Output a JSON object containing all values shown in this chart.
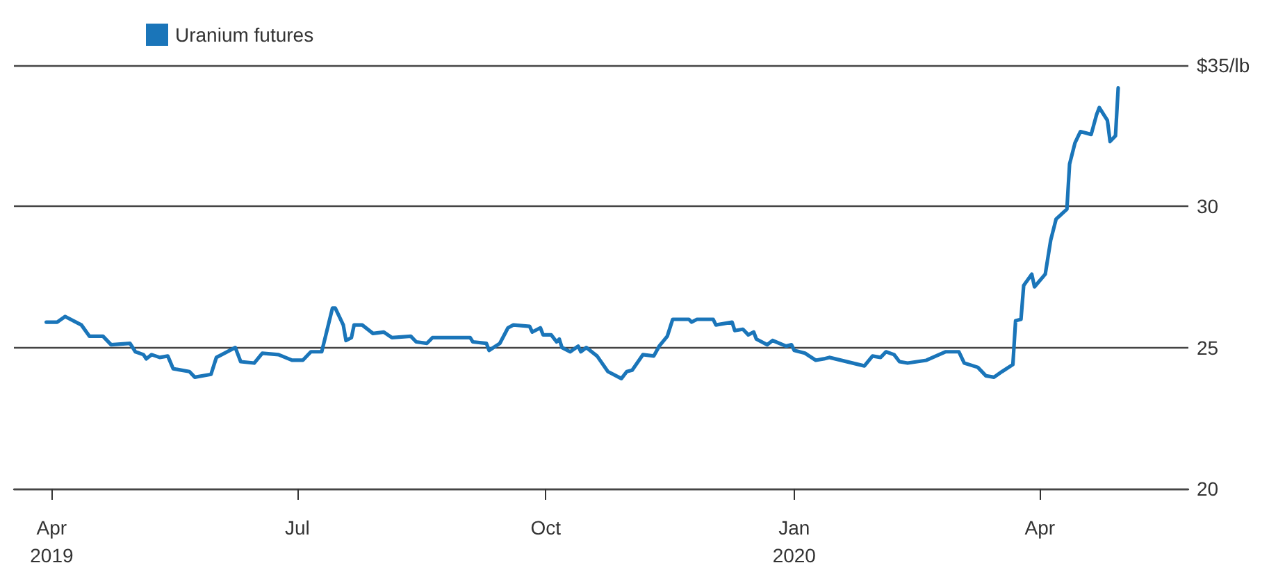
{
  "chart_data": {
    "type": "line",
    "legend": "top left",
    "grid": "y",
    "line_style": "solid",
    "marker": "none",
    "xlim": [
      "2019-03-18",
      "2020-05-26"
    ],
    "xticks": [
      {
        "value": "2019-04-01",
        "label": "Apr\n2019"
      },
      {
        "value": "2019-07-01",
        "label": "Jul"
      },
      {
        "value": "2019-10-01",
        "label": "Oct"
      },
      {
        "value": "2020-01-01",
        "label": "Jan\n2020"
      },
      {
        "value": "2020-04-01",
        "label": "Apr"
      }
    ],
    "ylim": [
      20,
      35
    ],
    "yticks": [
      20,
      25,
      30,
      {
        "value": 35,
        "label": "$35/lb"
      }
    ],
    "series": [
      {
        "name": "Uranium futures",
        "color": "#1a75b9",
        "x": [
          "2019-03-30",
          "2019-04-03",
          "2019-04-06",
          "2019-04-12",
          "2019-04-15",
          "2019-04-20",
          "2019-04-23",
          "2019-04-30",
          "2019-05-02",
          "2019-05-05",
          "2019-05-06",
          "2019-05-08",
          "2019-05-11",
          "2019-05-14",
          "2019-05-16",
          "2019-05-22",
          "2019-05-24",
          "2019-05-30",
          "2019-06-01",
          "2019-06-08",
          "2019-06-10",
          "2019-06-15",
          "2019-06-18",
          "2019-06-24",
          "2019-06-29",
          "2019-07-03",
          "2019-07-06",
          "2019-07-10",
          "2019-07-14",
          "2019-07-15",
          "2019-07-18",
          "2019-07-19",
          "2019-07-21",
          "2019-07-22",
          "2019-07-25",
          "2019-07-29",
          "2019-08-02",
          "2019-08-05",
          "2019-08-12",
          "2019-08-14",
          "2019-08-18",
          "2019-08-20",
          "2019-09-03",
          "2019-09-04",
          "2019-09-09",
          "2019-09-10",
          "2019-09-14",
          "2019-09-17",
          "2019-09-19",
          "2019-09-25",
          "2019-09-26",
          "2019-09-29",
          "2019-09-30",
          "2019-10-03",
          "2019-10-05",
          "2019-10-06",
          "2019-10-07",
          "2019-10-10",
          "2019-10-13",
          "2019-10-14",
          "2019-10-16",
          "2019-10-20",
          "2019-10-24",
          "2019-10-29",
          "2019-10-31",
          "2019-11-02",
          "2019-11-06",
          "2019-11-10",
          "2019-11-12",
          "2019-11-15",
          "2019-11-17",
          "2019-11-23",
          "2019-11-24",
          "2019-11-26",
          "2019-12-02",
          "2019-12-03",
          "2019-12-09",
          "2019-12-10",
          "2019-12-13",
          "2019-12-15",
          "2019-12-17",
          "2019-12-18",
          "2019-12-22",
          "2019-12-24",
          "2019-12-29",
          "2019-12-31",
          "2020-01-01",
          "2020-01-05",
          "2020-01-09",
          "2020-01-12",
          "2020-01-14",
          "2020-01-27",
          "2020-01-30",
          "2020-02-02",
          "2020-02-04",
          "2020-02-07",
          "2020-02-09",
          "2020-02-12",
          "2020-02-19",
          "2020-02-26",
          "2020-03-02",
          "2020-03-04",
          "2020-03-09",
          "2020-03-12",
          "2020-03-15",
          "2020-03-18",
          "2020-03-22",
          "2020-03-23",
          "2020-03-25",
          "2020-03-26",
          "2020-03-29",
          "2020-03-30",
          "2020-04-03",
          "2020-04-05",
          "2020-04-07",
          "2020-04-11",
          "2020-04-12",
          "2020-04-14",
          "2020-04-16",
          "2020-04-20",
          "2020-04-22",
          "2020-04-23",
          "2020-04-26",
          "2020-04-27",
          "2020-04-29",
          "2020-04-30"
        ],
        "values": [
          25.9,
          25.9,
          26.1,
          25.8,
          25.4,
          25.4,
          25.1,
          25.15,
          24.85,
          24.75,
          24.6,
          24.75,
          24.65,
          24.7,
          24.25,
          24.15,
          23.95,
          24.05,
          24.65,
          25.0,
          24.5,
          24.45,
          24.8,
          24.75,
          24.55,
          24.55,
          24.85,
          24.85,
          26.4,
          26.4,
          25.8,
          25.25,
          25.35,
          25.8,
          25.8,
          25.5,
          25.55,
          25.35,
          25.4,
          25.2,
          25.15,
          25.35,
          25.35,
          25.2,
          25.15,
          24.9,
          25.15,
          25.7,
          25.8,
          25.75,
          25.55,
          25.7,
          25.45,
          25.45,
          25.2,
          25.3,
          25.0,
          24.85,
          25.05,
          24.85,
          25.0,
          24.7,
          24.15,
          23.9,
          24.15,
          24.2,
          24.75,
          24.7,
          25.05,
          25.4,
          26.0,
          26.0,
          25.9,
          26.0,
          26.0,
          25.8,
          25.9,
          25.6,
          25.65,
          25.45,
          25.55,
          25.3,
          25.1,
          25.25,
          25.05,
          25.1,
          24.9,
          24.8,
          24.55,
          24.6,
          24.65,
          24.35,
          24.7,
          24.65,
          24.85,
          24.75,
          24.5,
          24.45,
          24.55,
          24.85,
          24.85,
          24.45,
          24.3,
          24.0,
          23.95,
          24.15,
          24.4,
          25.95,
          26.0,
          27.2,
          27.6,
          27.15,
          27.6,
          28.8,
          29.55,
          29.9,
          31.5,
          32.25,
          32.65,
          32.55,
          33.25,
          33.5,
          33.05,
          32.3,
          32.5,
          34.2
        ]
      }
    ]
  }
}
